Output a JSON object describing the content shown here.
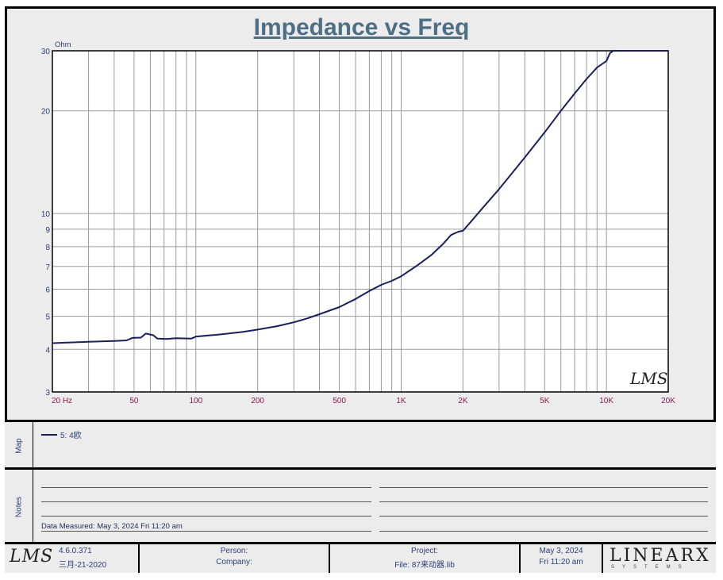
{
  "title": "Impedance vs Freq",
  "chart_data": {
    "type": "line",
    "ylabel": "Ohm",
    "x_scale": "log",
    "y_scale": "log",
    "xlim": [
      20,
      20000
    ],
    "ylim": [
      3,
      30
    ],
    "grid": true,
    "x_ticks": [
      {
        "value": 20,
        "label": "20  Hz"
      },
      {
        "value": 50,
        "label": "50"
      },
      {
        "value": 100,
        "label": "100"
      },
      {
        "value": 200,
        "label": "200"
      },
      {
        "value": 500,
        "label": "500"
      },
      {
        "value": 1000,
        "label": "1K"
      },
      {
        "value": 2000,
        "label": "2K"
      },
      {
        "value": 5000,
        "label": "5K"
      },
      {
        "value": 10000,
        "label": "10K"
      },
      {
        "value": 20000,
        "label": "20K"
      }
    ],
    "y_ticks": [
      {
        "value": 3,
        "label": "3"
      },
      {
        "value": 4,
        "label": "4"
      },
      {
        "value": 5,
        "label": "5"
      },
      {
        "value": 6,
        "label": "6"
      },
      {
        "value": 7,
        "label": "7"
      },
      {
        "value": 8,
        "label": "8"
      },
      {
        "value": 9,
        "label": "9"
      },
      {
        "value": 10,
        "label": "10"
      },
      {
        "value": 20,
        "label": "20"
      },
      {
        "value": 30,
        "label": "30"
      }
    ],
    "watermark": "LMS",
    "series": [
      {
        "name": "5: 4欧",
        "color": "#1a1f5c",
        "points": [
          [
            20,
            4.17
          ],
          [
            30,
            4.21
          ],
          [
            40,
            4.23
          ],
          [
            46,
            4.25
          ],
          [
            49,
            4.32
          ],
          [
            54,
            4.33
          ],
          [
            57,
            4.45
          ],
          [
            60,
            4.42
          ],
          [
            62,
            4.4
          ],
          [
            65,
            4.3
          ],
          [
            72,
            4.29
          ],
          [
            80,
            4.31
          ],
          [
            95,
            4.3
          ],
          [
            100,
            4.36
          ],
          [
            130,
            4.42
          ],
          [
            170,
            4.5
          ],
          [
            200,
            4.57
          ],
          [
            250,
            4.68
          ],
          [
            300,
            4.8
          ],
          [
            350,
            4.93
          ],
          [
            400,
            5.07
          ],
          [
            500,
            5.32
          ],
          [
            600,
            5.62
          ],
          [
            700,
            5.93
          ],
          [
            800,
            6.18
          ],
          [
            900,
            6.35
          ],
          [
            1000,
            6.55
          ],
          [
            1200,
            7.05
          ],
          [
            1400,
            7.55
          ],
          [
            1600,
            8.15
          ],
          [
            1750,
            8.65
          ],
          [
            1900,
            8.85
          ],
          [
            2000,
            8.9
          ],
          [
            2200,
            9.5
          ],
          [
            2500,
            10.4
          ],
          [
            3000,
            11.8
          ],
          [
            4000,
            14.6
          ],
          [
            5000,
            17.3
          ],
          [
            6000,
            20.0
          ],
          [
            7000,
            22.5
          ],
          [
            8000,
            24.8
          ],
          [
            9000,
            26.8
          ],
          [
            10000,
            28.0
          ],
          [
            10400,
            29.5
          ],
          [
            10800,
            30.0
          ],
          [
            20000,
            30.0
          ]
        ]
      }
    ]
  },
  "map": {
    "label": "Map",
    "entries": [
      {
        "text": "5: 4欧",
        "color": "#1a1f5c"
      }
    ]
  },
  "notes": {
    "label": "Notes",
    "measured": "Data Measured: May  3, 2024  Fri 11:20 am"
  },
  "footer": {
    "logo": "LMS",
    "version": "4.6.0.371",
    "version_date": "三月-21-2020",
    "person_label": "Person:",
    "company_label": "Company:",
    "project_label": "Project:",
    "file_label": "File: 87来动器.lib",
    "date": "May  3, 2024",
    "time": "Fri 11:20 am",
    "brand": "LINEARX",
    "brand_sub": "SYSTEMS"
  }
}
